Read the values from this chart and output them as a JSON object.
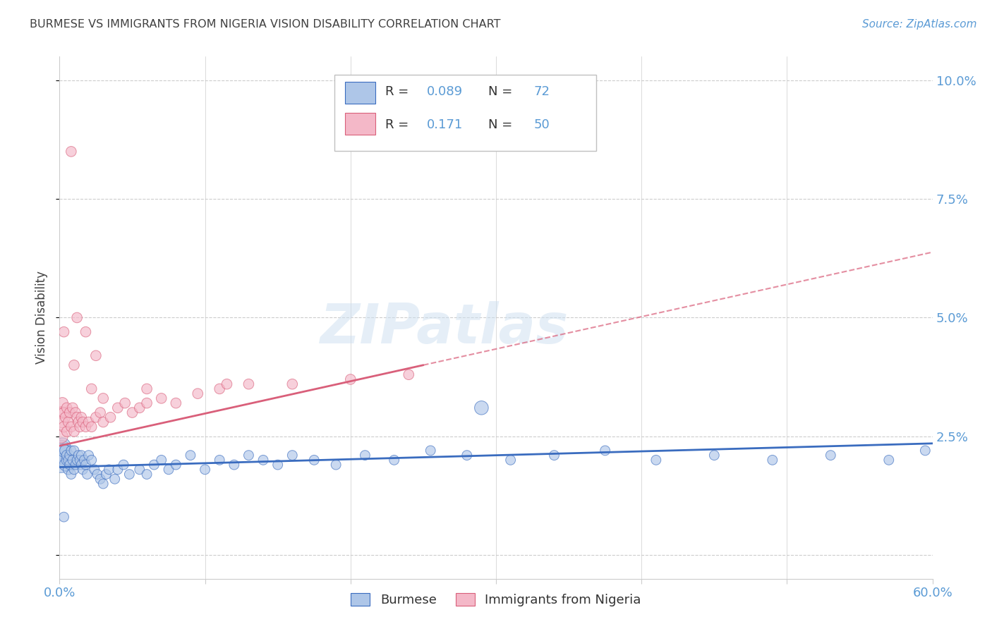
{
  "title": "BURMESE VS IMMIGRANTS FROM NIGERIA VISION DISABILITY CORRELATION CHART",
  "source": "Source: ZipAtlas.com",
  "ylabel": "Vision Disability",
  "xlim": [
    0.0,
    0.6
  ],
  "ylim": [
    -0.005,
    0.105
  ],
  "xticks": [
    0.0,
    0.1,
    0.2,
    0.3,
    0.4,
    0.5,
    0.6
  ],
  "yticks": [
    0.0,
    0.025,
    0.05,
    0.075,
    0.1
  ],
  "ytick_labels": [
    "",
    "2.5%",
    "5.0%",
    "7.5%",
    "10.0%"
  ],
  "xtick_labels": [
    "0.0%",
    "",
    "",
    "",
    "",
    "",
    "60.0%"
  ],
  "label1": "Burmese",
  "label2": "Immigrants from Nigeria",
  "color1": "#aec6e8",
  "color2": "#f4b8c8",
  "line_color1": "#3a6cbf",
  "line_color2": "#d95f7a",
  "watermark": "ZIPatlas",
  "background_color": "#ffffff",
  "title_color": "#404040",
  "axis_color": "#5b9bd5",
  "grid_color": "#cccccc",
  "burmese_x": [
    0.001,
    0.001,
    0.002,
    0.002,
    0.003,
    0.003,
    0.004,
    0.004,
    0.005,
    0.005,
    0.006,
    0.006,
    0.007,
    0.007,
    0.008,
    0.008,
    0.009,
    0.01,
    0.01,
    0.011,
    0.012,
    0.013,
    0.014,
    0.015,
    0.015,
    0.016,
    0.017,
    0.018,
    0.019,
    0.02,
    0.022,
    0.024,
    0.026,
    0.028,
    0.03,
    0.032,
    0.034,
    0.038,
    0.04,
    0.044,
    0.048,
    0.055,
    0.06,
    0.065,
    0.07,
    0.075,
    0.08,
    0.09,
    0.1,
    0.11,
    0.12,
    0.13,
    0.14,
    0.15,
    0.16,
    0.175,
    0.19,
    0.21,
    0.23,
    0.255,
    0.28,
    0.31,
    0.34,
    0.375,
    0.41,
    0.45,
    0.49,
    0.53,
    0.57,
    0.595,
    0.003,
    0.29
  ],
  "burmese_y": [
    0.02,
    0.022,
    0.021,
    0.023,
    0.02,
    0.022,
    0.019,
    0.022,
    0.02,
    0.021,
    0.018,
    0.02,
    0.019,
    0.021,
    0.017,
    0.022,
    0.02,
    0.018,
    0.022,
    0.019,
    0.02,
    0.021,
    0.02,
    0.019,
    0.021,
    0.018,
    0.02,
    0.019,
    0.017,
    0.021,
    0.02,
    0.018,
    0.017,
    0.016,
    0.015,
    0.017,
    0.018,
    0.016,
    0.018,
    0.019,
    0.017,
    0.018,
    0.017,
    0.019,
    0.02,
    0.018,
    0.019,
    0.021,
    0.018,
    0.02,
    0.019,
    0.021,
    0.02,
    0.019,
    0.021,
    0.02,
    0.019,
    0.021,
    0.02,
    0.022,
    0.021,
    0.02,
    0.021,
    0.022,
    0.02,
    0.021,
    0.02,
    0.021,
    0.02,
    0.022,
    0.008,
    0.031
  ],
  "burmese_sizes": [
    300,
    200,
    150,
    120,
    100,
    80,
    70,
    60,
    55,
    50,
    50,
    45,
    45,
    45,
    45,
    45,
    45,
    45,
    45,
    45,
    45,
    45,
    45,
    45,
    45,
    45,
    45,
    45,
    45,
    45,
    45,
    45,
    45,
    45,
    45,
    45,
    45,
    45,
    45,
    45,
    45,
    45,
    45,
    45,
    45,
    45,
    45,
    45,
    45,
    45,
    45,
    45,
    45,
    45,
    45,
    45,
    45,
    45,
    45,
    45,
    45,
    45,
    45,
    45,
    45,
    45,
    45,
    45,
    45,
    45,
    45,
    90
  ],
  "nigeria_x": [
    0.001,
    0.001,
    0.002,
    0.002,
    0.003,
    0.003,
    0.004,
    0.005,
    0.005,
    0.006,
    0.007,
    0.008,
    0.009,
    0.01,
    0.011,
    0.012,
    0.013,
    0.014,
    0.015,
    0.016,
    0.018,
    0.02,
    0.022,
    0.025,
    0.028,
    0.03,
    0.035,
    0.04,
    0.045,
    0.05,
    0.055,
    0.06,
    0.07,
    0.08,
    0.095,
    0.11,
    0.13,
    0.16,
    0.2,
    0.24,
    0.003,
    0.01,
    0.06,
    0.115,
    0.025,
    0.018,
    0.022,
    0.03,
    0.008,
    0.012
  ],
  "nigeria_y": [
    0.025,
    0.03,
    0.028,
    0.032,
    0.027,
    0.03,
    0.029,
    0.026,
    0.031,
    0.028,
    0.03,
    0.027,
    0.031,
    0.026,
    0.03,
    0.029,
    0.028,
    0.027,
    0.029,
    0.028,
    0.027,
    0.028,
    0.027,
    0.029,
    0.03,
    0.028,
    0.029,
    0.031,
    0.032,
    0.03,
    0.031,
    0.032,
    0.033,
    0.032,
    0.034,
    0.035,
    0.036,
    0.036,
    0.037,
    0.038,
    0.047,
    0.04,
    0.035,
    0.036,
    0.042,
    0.047,
    0.035,
    0.033,
    0.085,
    0.05
  ],
  "nigeria_sizes": [
    90,
    70,
    65,
    60,
    55,
    55,
    50,
    50,
    50,
    50,
    50,
    50,
    50,
    50,
    50,
    50,
    50,
    50,
    50,
    50,
    50,
    50,
    50,
    50,
    50,
    50,
    50,
    50,
    50,
    50,
    50,
    50,
    50,
    50,
    50,
    50,
    50,
    50,
    50,
    50,
    50,
    50,
    50,
    50,
    50,
    50,
    50,
    50,
    50,
    50
  ],
  "reg_burmese": [
    0.0,
    0.6,
    0.0185,
    0.0235
  ],
  "reg_nigeria": [
    0.0,
    0.25,
    0.023,
    0.04
  ]
}
